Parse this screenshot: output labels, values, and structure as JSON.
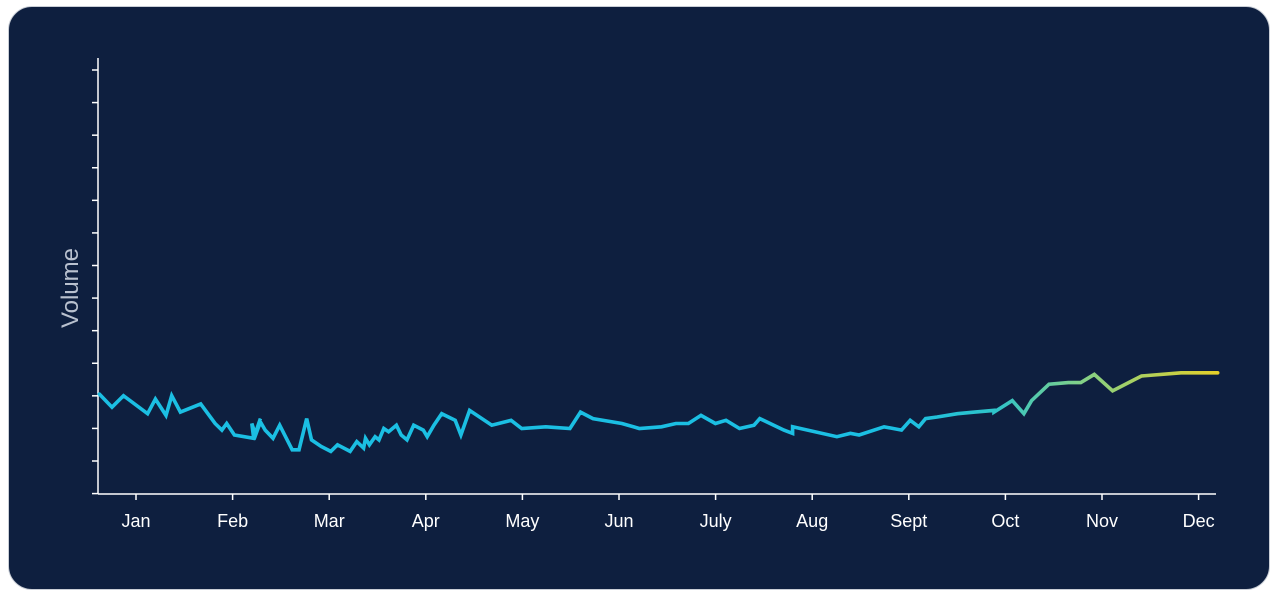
{
  "chart_data": {
    "type": "line",
    "title": "",
    "ylabel": "Volume",
    "xlabel": "",
    "x_tick_labels": [
      "Jan",
      "Feb",
      "Mar",
      "Apr",
      "May",
      "Jun",
      "July",
      "Aug",
      "Sept",
      "Oct",
      "Nov",
      "Dec"
    ],
    "x_range": [
      0.0,
      11.44
    ],
    "y_range": [
      0,
      26
    ],
    "y_tick_count": 14,
    "grid": false,
    "legend": "none",
    "gradient_colors": [
      "#1bbfe3",
      "#2fc4c9",
      "#7fd08a",
      "#e8d026"
    ],
    "axis_color": "#ffffff",
    "series": [
      {
        "x": [
          -0.4,
          -0.27,
          -0.15,
          0.1,
          0.18,
          0.29,
          0.35,
          0.44,
          0.65,
          0.8,
          0.87,
          0.92,
          1.0,
          1.2,
          1.27,
          1.2,
          1.18,
          1.22,
          1.27,
          1.32,
          1.4,
          1.47,
          1.6,
          1.67,
          1.75,
          1.8,
          1.9,
          2.0,
          2.07,
          2.2,
          2.27,
          2.34,
          2.36,
          2.4,
          2.46,
          2.5,
          2.55,
          2.6,
          2.68,
          2.73,
          2.79,
          2.86,
          2.96,
          3.0,
          3.07,
          3.15,
          3.29,
          3.35,
          3.44,
          3.67,
          3.87,
          3.98,
          4.23,
          4.48,
          4.59,
          4.72,
          5.02,
          5.2,
          5.43,
          5.58,
          5.71,
          5.84,
          5.99,
          6.1,
          6.24,
          6.39,
          6.45,
          6.7,
          6.79,
          6.79,
          7.25,
          7.39,
          7.48,
          7.74,
          7.92,
          8.01,
          8.1,
          8.17,
          8.29,
          8.5,
          8.68,
          8.88,
          8.88,
          9.07,
          9.19,
          9.27,
          9.45,
          9.65,
          9.78,
          9.92,
          10.11,
          10.41,
          10.82,
          11.02,
          11.2
        ],
        "values": [
          6.1,
          5.3,
          6.0,
          4.9,
          5.8,
          4.8,
          6.0,
          5.0,
          5.5,
          4.3,
          3.9,
          4.3,
          3.6,
          3.4,
          4.6,
          3.4,
          4.3,
          3.6,
          4.4,
          3.9,
          3.4,
          4.2,
          2.7,
          2.7,
          4.6,
          3.3,
          2.9,
          2.6,
          3.0,
          2.6,
          3.2,
          2.8,
          3.4,
          3.0,
          3.5,
          3.3,
          4.0,
          3.8,
          4.2,
          3.6,
          3.3,
          4.2,
          3.9,
          3.5,
          4.2,
          4.9,
          4.5,
          3.6,
          5.1,
          4.2,
          4.5,
          4.0,
          4.1,
          4.0,
          5.0,
          4.6,
          4.3,
          4.0,
          4.1,
          4.3,
          4.3,
          4.8,
          4.3,
          4.5,
          4.0,
          4.2,
          4.6,
          3.9,
          3.7,
          4.1,
          3.5,
          3.7,
          3.6,
          4.1,
          3.9,
          4.5,
          4.1,
          4.6,
          4.7,
          4.9,
          5.0,
          5.1,
          5.0,
          5.7,
          4.9,
          5.7,
          6.7,
          6.8,
          6.8,
          7.3,
          6.3,
          7.2,
          7.4,
          7.4,
          7.4
        ]
      }
    ]
  }
}
